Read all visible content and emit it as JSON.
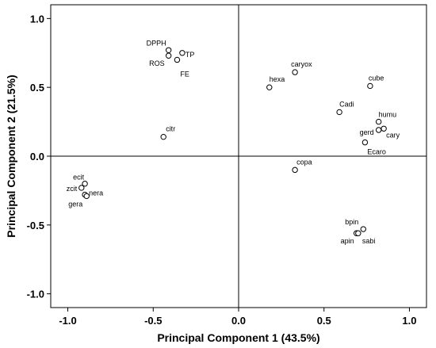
{
  "chart_data": {
    "type": "scatter",
    "title": "",
    "xlabel": "Principal Component 1 (43.5%)",
    "ylabel": "Principal Component 2 (21.5%)",
    "xlim": [
      -1.1,
      1.1
    ],
    "ylim": [
      -1.1,
      1.1
    ],
    "xticks": [
      -1.0,
      -0.5,
      0.0,
      0.5,
      1.0
    ],
    "yticks": [
      -1.0,
      -0.5,
      0.0,
      0.5,
      1.0
    ],
    "xtick_labels": [
      "-1.0",
      "-0.5",
      "0.0",
      "0.5",
      "1.0"
    ],
    "ytick_labels": [
      "-1.0",
      "-0.5",
      "0.0",
      "0.5",
      "1.0"
    ],
    "grid": false,
    "reference_lines": {
      "x": 0,
      "y": 0
    },
    "points": [
      {
        "label": "DPPH",
        "x": -0.41,
        "y": 0.77
      },
      {
        "label": "TP",
        "x": -0.33,
        "y": 0.75
      },
      {
        "label": "ROS",
        "x": -0.41,
        "y": 0.73
      },
      {
        "label": "FE",
        "x": -0.36,
        "y": 0.7
      },
      {
        "label": "citr",
        "x": -0.44,
        "y": 0.14
      },
      {
        "label": "caryox",
        "x": 0.33,
        "y": 0.61
      },
      {
        "label": "hexa",
        "x": 0.18,
        "y": 0.5
      },
      {
        "label": "cube",
        "x": 0.77,
        "y": 0.51
      },
      {
        "label": "Cadi",
        "x": 0.59,
        "y": 0.32
      },
      {
        "label": "humu",
        "x": 0.82,
        "y": 0.25
      },
      {
        "label": "gerd",
        "x": 0.82,
        "y": 0.19
      },
      {
        "label": "cary",
        "x": 0.85,
        "y": 0.2
      },
      {
        "label": "Ecaro",
        "x": 0.74,
        "y": 0.1
      },
      {
        "label": "copa",
        "x": 0.33,
        "y": -0.1
      },
      {
        "label": "ecit",
        "x": -0.9,
        "y": -0.2
      },
      {
        "label": "zcit",
        "x": -0.92,
        "y": -0.23
      },
      {
        "label": "nera",
        "x": -0.9,
        "y": -0.28
      },
      {
        "label": "gera",
        "x": -0.89,
        "y": -0.29
      },
      {
        "label": "bpin",
        "x": 0.73,
        "y": -0.53
      },
      {
        "label": "apin",
        "x": 0.69,
        "y": -0.56
      },
      {
        "label": "sabi",
        "x": 0.7,
        "y": -0.56
      }
    ]
  }
}
